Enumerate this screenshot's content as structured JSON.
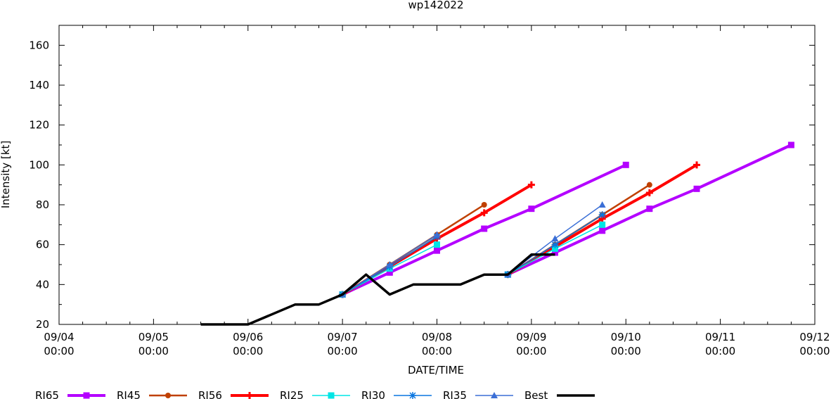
{
  "chart_data": {
    "type": "line",
    "title": "wp142022",
    "xlabel": "DATE/TIME",
    "ylabel": "Intensity [kt]",
    "xlim": [
      "09/04 00:00",
      "09/12 00:00"
    ],
    "ylim": [
      20,
      170
    ],
    "yticks": [
      20,
      40,
      60,
      80,
      100,
      120,
      140,
      160
    ],
    "xticks": [
      {
        "date": "09/04",
        "time": "00:00"
      },
      {
        "date": "09/05",
        "time": "00:00"
      },
      {
        "date": "09/06",
        "time": "00:00"
      },
      {
        "date": "09/07",
        "time": "00:00"
      },
      {
        "date": "09/08",
        "time": "00:00"
      },
      {
        "date": "09/09",
        "time": "00:00"
      },
      {
        "date": "09/10",
        "time": "00:00"
      },
      {
        "date": "09/11",
        "time": "00:00"
      },
      {
        "date": "09/12",
        "time": "00:00"
      }
    ],
    "grid": false,
    "legend_position": "bottom",
    "series": [
      {
        "name": "RI65",
        "color": "#b400ff",
        "width": 4,
        "marker": "square",
        "segments": [
          [
            [
              "09/07 00:00",
              35
            ],
            [
              "09/07 12:00",
              46
            ],
            [
              "09/08 00:00",
              57
            ],
            [
              "09/08 12:00",
              68
            ],
            [
              "09/09 00:00",
              78
            ],
            [
              "09/10 00:00",
              100
            ]
          ],
          [
            [
              "09/08 18:00",
              45
            ],
            [
              "09/09 06:00",
              56
            ],
            [
              "09/09 18:00",
              67
            ],
            [
              "09/10 06:00",
              78
            ],
            [
              "09/10 18:00",
              88
            ],
            [
              "09/11 18:00",
              110
            ]
          ]
        ]
      },
      {
        "name": "RI45",
        "color": "#c04000",
        "width": 2.5,
        "marker": "circle",
        "segments": [
          [
            [
              "09/07 00:00",
              35
            ],
            [
              "09/07 12:00",
              50
            ],
            [
              "09/08 00:00",
              65
            ],
            [
              "09/08 12:00",
              80
            ]
          ],
          [
            [
              "09/08 18:00",
              45
            ],
            [
              "09/09 06:00",
              60
            ],
            [
              "09/09 18:00",
              75
            ],
            [
              "09/10 06:00",
              90
            ]
          ]
        ]
      },
      {
        "name": "RI56",
        "color": "#ff0000",
        "width": 4,
        "marker": "plus",
        "segments": [
          [
            [
              "09/07 00:00",
              35
            ],
            [
              "09/07 12:00",
              49
            ],
            [
              "09/08 00:00",
              63
            ],
            [
              "09/08 12:00",
              76
            ],
            [
              "09/09 00:00",
              90
            ]
          ],
          [
            [
              "09/08 18:00",
              45
            ],
            [
              "09/09 06:00",
              59
            ],
            [
              "09/09 18:00",
              73
            ],
            [
              "09/10 06:00",
              86
            ],
            [
              "09/10 18:00",
              100
            ]
          ]
        ]
      },
      {
        "name": "RI25",
        "color": "#00e5e5",
        "width": 1.5,
        "marker": "square",
        "segments": [
          [
            [
              "09/07 00:00",
              35
            ],
            [
              "09/07 12:00",
              48
            ],
            [
              "09/08 00:00",
              60
            ]
          ],
          [
            [
              "09/08 18:00",
              45
            ],
            [
              "09/09 06:00",
              58
            ],
            [
              "09/09 18:00",
              70
            ]
          ]
        ]
      },
      {
        "name": "RI30",
        "color": "#0a76e0",
        "width": 1.5,
        "marker": "star",
        "segments": [
          [
            [
              "09/07 00:00",
              35
            ],
            [
              "09/07 12:00",
              49
            ],
            [
              "09/08 00:00",
              64
            ]
          ],
          [
            [
              "09/08 18:00",
              45
            ],
            [
              "09/09 06:00",
              60
            ],
            [
              "09/09 18:00",
              75
            ]
          ]
        ]
      },
      {
        "name": "RI35",
        "color": "#3b6fd6",
        "width": 1.5,
        "marker": "triangle",
        "segments": [
          [
            [
              "09/07 00:00",
              35
            ],
            [
              "09/07 12:00",
              50
            ],
            [
              "09/08 00:00",
              65
            ]
          ],
          [
            [
              "09/08 18:00",
              45
            ],
            [
              "09/09 06:00",
              63
            ],
            [
              "09/09 18:00",
              80
            ]
          ]
        ]
      },
      {
        "name": "Best",
        "color": "#000000",
        "width": 3.5,
        "marker": "none",
        "segments": [
          [
            [
              "09/05 12:00",
              20
            ],
            [
              "09/06 00:00",
              20
            ],
            [
              "09/06 12:00",
              30
            ],
            [
              "09/06 18:00",
              30
            ],
            [
              "09/07 00:00",
              35
            ],
            [
              "09/07 06:00",
              45
            ],
            [
              "09/07 12:00",
              35
            ],
            [
              "09/07 18:00",
              40
            ],
            [
              "09/08 00:00",
              40
            ],
            [
              "09/08 06:00",
              40
            ],
            [
              "09/08 12:00",
              45
            ],
            [
              "09/08 18:00",
              45
            ],
            [
              "09/09 00:00",
              55
            ],
            [
              "09/09 06:00",
              55
            ]
          ]
        ]
      }
    ]
  }
}
